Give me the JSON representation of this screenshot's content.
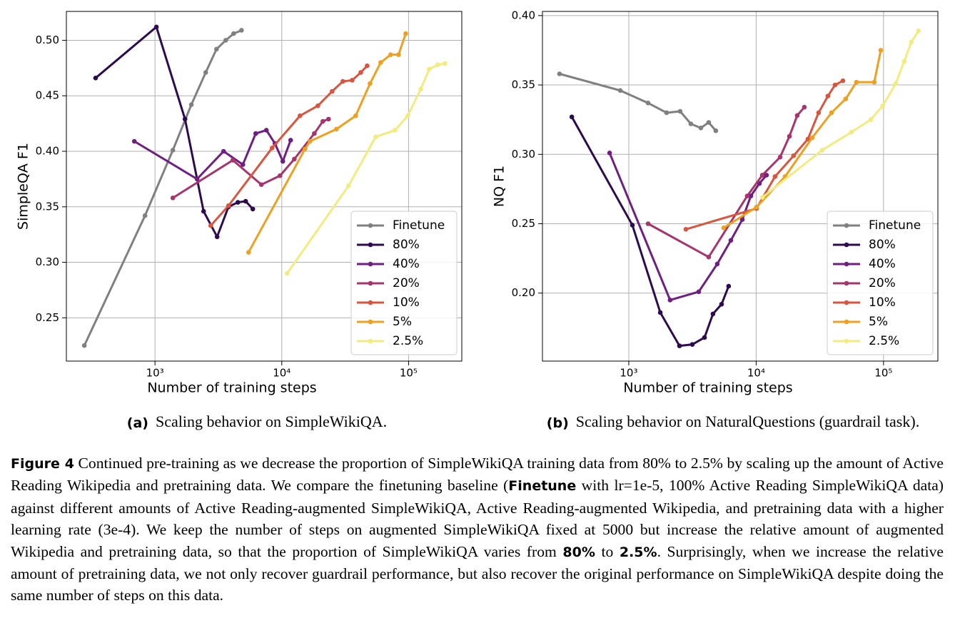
{
  "chart_data": [
    {
      "type": "line",
      "xscale": "log",
      "xlabel": "Number of training steps",
      "ylabel": "SimpleQA F1",
      "xlim": [
        200,
        263000
      ],
      "xticks": [
        {
          "value": 1000,
          "label": "10³"
        },
        {
          "value": 10000,
          "label": "10⁴"
        },
        {
          "value": 100000,
          "label": "10⁵"
        }
      ],
      "ylim": [
        0.211,
        0.526
      ],
      "yticks": [
        0.25,
        {
          "value": 0.3,
          "label": "0.30"
        },
        0.35,
        {
          "value": 0.4,
          "label": "0.40"
        },
        0.45,
        {
          "value": 0.5,
          "label": "0.50"
        }
      ],
      "grid": true,
      "legend": "lower right",
      "caption": {
        "label": "(a)",
        "text": "Scaling behavior on SimpleWikiQA."
      },
      "series": [
        {
          "name": "Finetune",
          "color": "#808080",
          "x": [
            277,
            834,
            1383,
            1935,
            2512,
            3055,
            3614,
            4170,
            4810
          ],
          "values": [
            0.225,
            0.342,
            0.401,
            0.442,
            0.471,
            0.492,
            0.5,
            0.506,
            0.509
          ]
        },
        {
          "name": "80%",
          "color": "#2c0b4f",
          "x": [
            340,
            1026,
            1725,
            2417,
            3090,
            3800,
            4505,
            5190,
            5910
          ],
          "values": [
            0.466,
            0.512,
            0.429,
            0.346,
            0.323,
            0.35,
            0.354,
            0.355,
            0.348
          ]
        },
        {
          "name": "40%",
          "color": "#6f1f80",
          "x": [
            687,
            2148,
            3475,
            4930,
            6230,
            7560,
            8840,
            10190,
            11750
          ],
          "values": [
            0.409,
            0.375,
            0.4,
            0.388,
            0.416,
            0.419,
            0.407,
            0.391,
            0.41
          ]
        },
        {
          "name": "20%",
          "color": "#a5356c",
          "x": [
            1383,
            4110,
            6900,
            9680,
            12560,
            18050,
            21080,
            23380
          ],
          "values": [
            0.358,
            0.392,
            0.37,
            0.378,
            0.393,
            0.416,
            0.427,
            0.429
          ]
        },
        {
          "name": "10%",
          "color": "#d8553f",
          "x": [
            2750,
            3800,
            8390,
            13930,
            19260,
            24950,
            30320,
            35900,
            41980,
            47120
          ],
          "values": [
            0.333,
            0.351,
            0.403,
            0.432,
            0.441,
            0.454,
            0.463,
            0.464,
            0.471,
            0.477
          ]
        },
        {
          "name": "5%",
          "color": "#eea020",
          "x": [
            5470,
            15240,
            16680,
            26990,
            38280,
            49660,
            60300,
            72250,
            83400,
            94900
          ],
          "values": [
            0.309,
            0.402,
            0.409,
            0.42,
            0.432,
            0.461,
            0.48,
            0.487,
            0.487,
            0.506
          ]
        },
        {
          "name": "2.5%",
          "color": "#f2ec80",
          "x": [
            11020,
            33650,
            55060,
            78190,
            98640,
            124700,
            145600,
            170100,
            193700
          ],
          "values": [
            0.29,
            0.369,
            0.413,
            0.419,
            0.432,
            0.456,
            0.474,
            0.478,
            0.479
          ]
        }
      ]
    },
    {
      "type": "line",
      "xscale": "log",
      "xlabel": "Number of training steps",
      "ylabel": "NQ F1",
      "xlim": [
        210,
        267000
      ],
      "xticks": [
        {
          "value": 1000,
          "label": "10³"
        },
        {
          "value": 10000,
          "label": "10⁴"
        },
        {
          "value": 100000,
          "label": "10⁵"
        }
      ],
      "ylim": [
        0.151,
        0.403
      ],
      "yticks": [
        {
          "value": 0.2,
          "label": "0.20"
        },
        0.25,
        {
          "value": 0.3,
          "label": "0.30"
        },
        0.35,
        {
          "value": 0.4,
          "label": "0.40"
        }
      ],
      "grid": true,
      "legend": "lower right",
      "caption": {
        "label": "(b)",
        "text": "Scaling behavior on NaturalQuestions (guardrail task)."
      },
      "series": [
        {
          "name": "Finetune",
          "color": "#808080",
          "x": [
            286,
            857,
            1417,
            1980,
            2531,
            3070,
            3680,
            4240,
            4820
          ],
          "values": [
            0.358,
            0.346,
            0.337,
            0.33,
            0.331,
            0.322,
            0.319,
            0.323,
            0.317
          ]
        },
        {
          "name": "80%",
          "color": "#2c0b4f",
          "x": [
            357,
            1067,
            1767,
            2501,
            3153,
            3930,
            4580,
            5350,
            6080
          ],
          "values": [
            0.327,
            0.249,
            0.186,
            0.162,
            0.163,
            0.168,
            0.185,
            0.192,
            0.205
          ]
        },
        {
          "name": "40%",
          "color": "#6f1f80",
          "x": [
            707,
            2110,
            3540,
            4950,
            6330,
            7780,
            9080,
            10600,
            12050
          ],
          "values": [
            0.301,
            0.195,
            0.201,
            0.221,
            0.238,
            0.253,
            0.27,
            0.279,
            0.285
          ]
        },
        {
          "name": "20%",
          "color": "#a5356c",
          "x": [
            1417,
            4240,
            8510,
            11170,
            15420,
            18240,
            21000,
            23900
          ],
          "values": [
            0.25,
            0.226,
            0.27,
            0.285,
            0.298,
            0.313,
            0.328,
            0.334
          ]
        },
        {
          "name": "10%",
          "color": "#d8553f",
          "x": [
            2805,
            10060,
            14060,
            19670,
            25470,
            30900,
            36560,
            41610,
            47960
          ],
          "values": [
            0.246,
            0.261,
            0.284,
            0.299,
            0.311,
            0.33,
            0.342,
            0.35,
            0.353
          ]
        },
        {
          "name": "5%",
          "color": "#eea020",
          "x": [
            5560,
            10060,
            16870,
            27540,
            39030,
            50470,
            61210,
            84550,
            95100
          ],
          "values": [
            0.247,
            0.262,
            0.284,
            0.312,
            0.33,
            0.34,
            0.352,
            0.352,
            0.375
          ]
        },
        {
          "name": "2.5%",
          "color": "#f2ec80",
          "x": [
            11170,
            32960,
            55950,
            79300,
            98640,
            124500,
            145300,
            165300,
            188100
          ],
          "values": [
            0.269,
            0.303,
            0.316,
            0.325,
            0.335,
            0.351,
            0.367,
            0.381,
            0.389
          ]
        }
      ]
    }
  ],
  "figure_caption": [
    {
      "text": "Figure 4",
      "bold": true
    },
    {
      "text": " Continued pre-training as we decrease the proportion of SimpleWikiQA training data from 80% to 2.5% by scaling up the amount of Active Reading Wikipedia and pretraining data. We compare the finetuning baseline (",
      "bold": false
    },
    {
      "text": "Finetune",
      "bold": true
    },
    {
      "text": " with lr=1e-5, 100% Active Reading SimpleWikiQA data) against different amounts of Active Reading-augmented SimpleWikiQA, Active Reading-augmented Wikipedia, and pretraining data with a higher learning rate (3e-4). We keep the number of steps on augmented SimpleWikiQA fixed at 5000 but increase the relative amount of augmented Wikipedia and pretraining data, so that the proportion of SimpleWikiQA varies from ",
      "bold": false
    },
    {
      "text": "80%",
      "bold": true
    },
    {
      "text": " to ",
      "bold": false
    },
    {
      "text": "2.5%",
      "bold": true
    },
    {
      "text": ". Surprisingly, when we increase the relative amount of pretraining data, we not only recover guardrail performance, but also recover the original performance on SimpleWikiQA despite doing the same number of steps on this data.",
      "bold": false
    }
  ]
}
